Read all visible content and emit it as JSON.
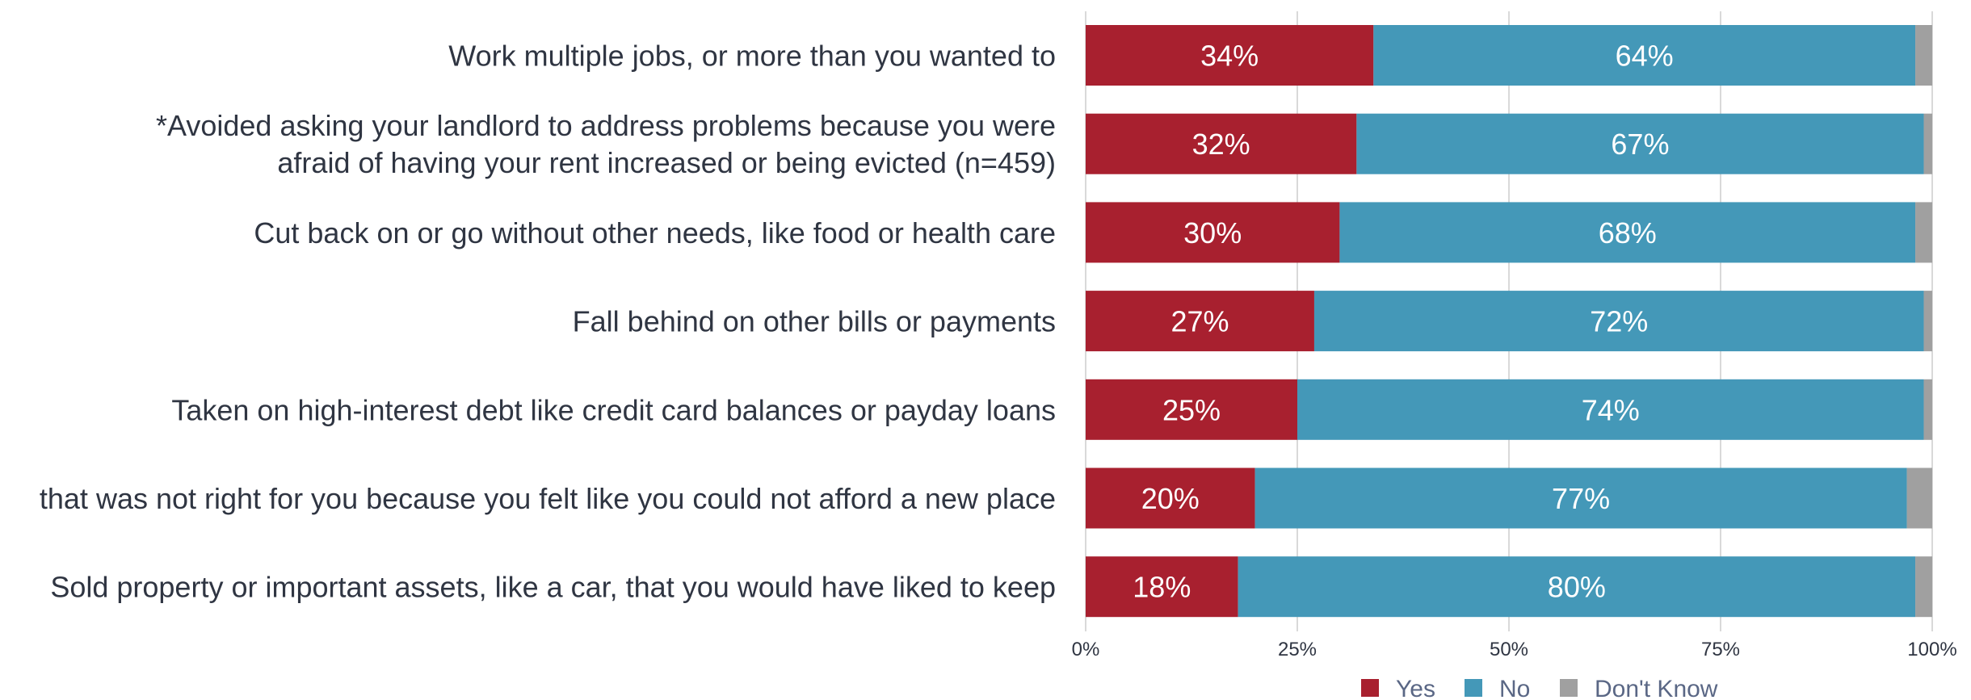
{
  "chart_data": {
    "type": "bar",
    "orientation": "horizontal",
    "stacked": true,
    "title": "",
    "xlabel": "",
    "ylabel": "",
    "xlim": [
      0,
      100
    ],
    "x_ticks": [
      0,
      25,
      50,
      75,
      100
    ],
    "x_tick_labels": [
      "0%",
      "25%",
      "50%",
      "75%",
      "100%"
    ],
    "grid": true,
    "legend_position": "bottom",
    "categories": [
      [
        "Work multiple jobs, or more than you wanted to"
      ],
      [
        "*Avoided asking your landlord to address problems because you were",
        "afraid of having your rent increased or being evicted (n=459)"
      ],
      [
        "Cut back on or go without other needs, like food or health care"
      ],
      [
        "Fall behind on other bills or payments"
      ],
      [
        "Taken on high-interest debt like credit card balances or payday loans"
      ],
      [
        "that was not right for you because you felt like you could not afford a new place"
      ],
      [
        "Sold property or important assets, like a car, that you would have liked to keep"
      ]
    ],
    "series": [
      {
        "name": "Yes",
        "color": "#a8202f",
        "values": [
          34,
          32,
          30,
          27,
          25,
          20,
          18
        ],
        "labels": [
          "34%",
          "32%",
          "30%",
          "27%",
          "25%",
          "20%",
          "18%"
        ]
      },
      {
        "name": "No",
        "color": "#4498b8",
        "values": [
          64,
          67,
          68,
          72,
          74,
          77,
          80
        ],
        "labels": [
          "64%",
          "67%",
          "68%",
          "72%",
          "74%",
          "77%",
          "80%"
        ]
      },
      {
        "name": "Don't Know",
        "color": "#a0a0a0",
        "values": [
          2,
          1,
          2,
          1,
          1,
          3,
          2
        ],
        "labels": [
          "",
          "",
          "",
          "",
          "",
          "",
          ""
        ]
      }
    ]
  }
}
